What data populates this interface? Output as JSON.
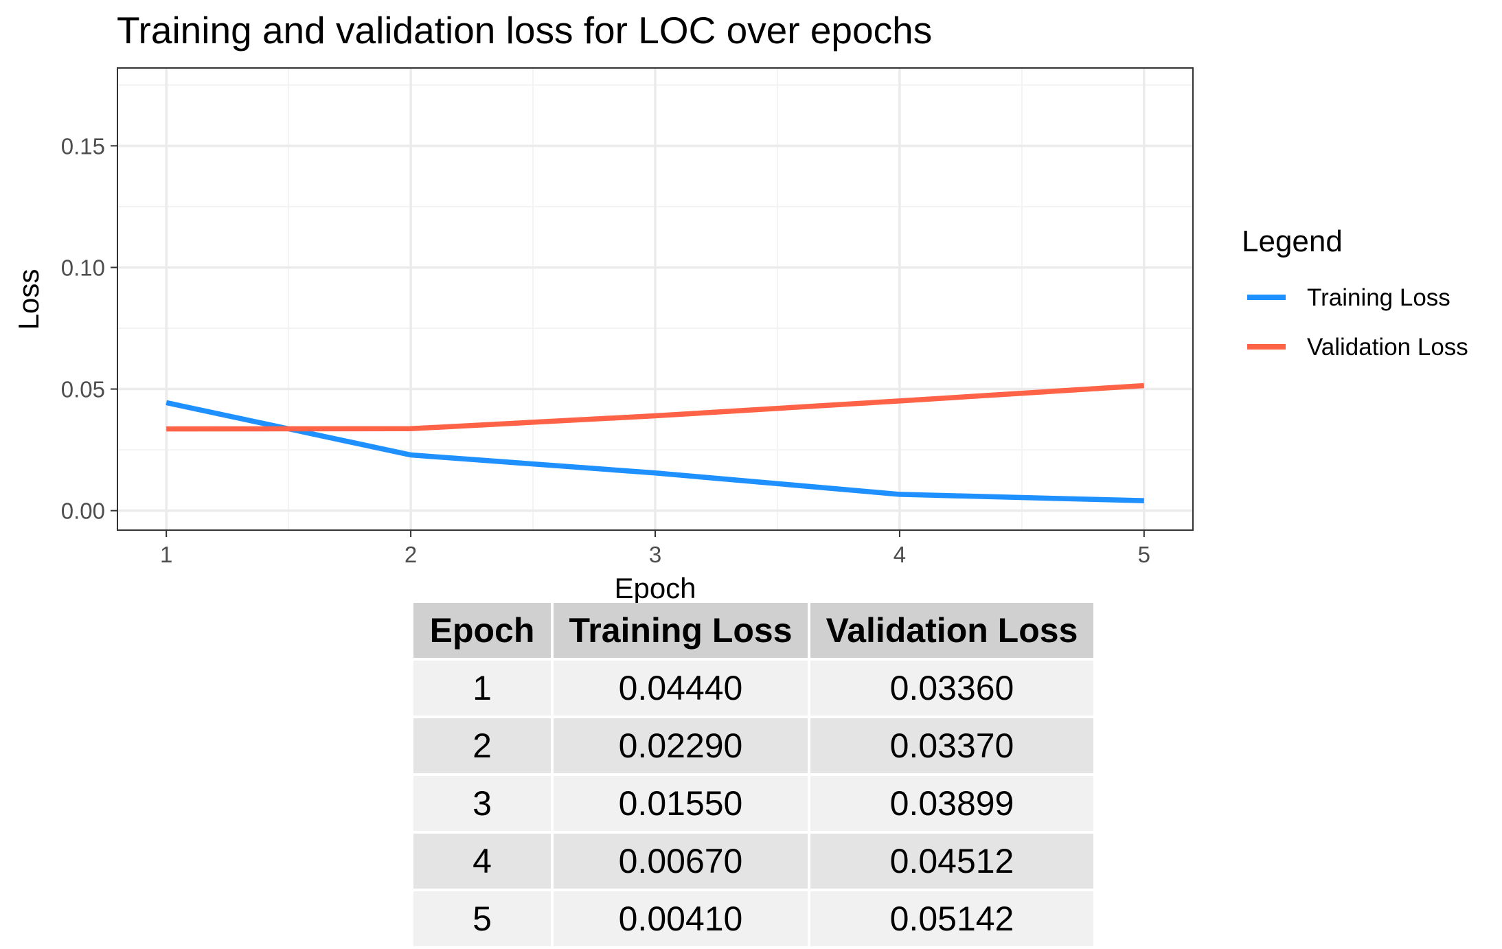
{
  "chart_data": {
    "type": "line",
    "title": "Training and validation loss for LOC over epochs",
    "xlabel": "Epoch",
    "ylabel": "Loss",
    "x": [
      1,
      2,
      3,
      4,
      5
    ],
    "xticks": [
      "1",
      "2",
      "3",
      "4",
      "5"
    ],
    "yticks": [
      "0.00",
      "0.05",
      "0.10",
      "0.15"
    ],
    "xlim": [
      0.8,
      5.2
    ],
    "ylim": [
      -0.008,
      0.182
    ],
    "grid": true,
    "legend": {
      "title": "Legend",
      "placement": "right",
      "items": [
        "Training Loss",
        "Validation Loss"
      ]
    },
    "series": [
      {
        "name": "Training Loss",
        "color": "#1E90FF",
        "values": [
          0.0444,
          0.0229,
          0.0155,
          0.0067,
          0.0041
        ]
      },
      {
        "name": "Validation Loss",
        "color": "#FF6347",
        "values": [
          0.0336,
          0.0337,
          0.03899,
          0.04512,
          0.05142
        ]
      }
    ]
  },
  "table": {
    "headers": [
      "Epoch",
      "Training Loss",
      "Validation Loss"
    ],
    "rows": [
      [
        "1",
        "0.04440",
        "0.03360"
      ],
      [
        "2",
        "0.02290",
        "0.03370"
      ],
      [
        "3",
        "0.01550",
        "0.03899"
      ],
      [
        "4",
        "0.00670",
        "0.04512"
      ],
      [
        "5",
        "0.00410",
        "0.05142"
      ]
    ]
  }
}
